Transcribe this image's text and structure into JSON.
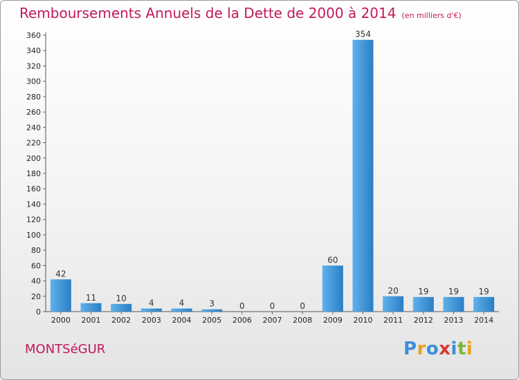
{
  "title": "Remboursements Annuels de la Dette de 2000 à 2014",
  "subtitle": "(en milliers d'€)",
  "commune": "MONTSéGUR",
  "logo": {
    "text": "Proxiti",
    "letters": [
      {
        "ch": "P",
        "color": "#3a8fd8"
      },
      {
        "ch": "r",
        "color": "#e8a21e"
      },
      {
        "ch": "o",
        "color": "#3a8fd8"
      },
      {
        "ch": "x",
        "color": "#d63a2f"
      },
      {
        "ch": "i",
        "color": "#3a8fd8"
      },
      {
        "ch": "t",
        "color": "#7db535"
      },
      {
        "ch": "i",
        "color": "#e8a21e"
      }
    ]
  },
  "colors": {
    "accent": "#c2185b",
    "bar_light": "#5fb1ec",
    "bar_dark": "#2a7fc4"
  },
  "chart_data": {
    "type": "bar",
    "categories": [
      "2000",
      "2001",
      "2002",
      "2003",
      "2004",
      "2005",
      "2006",
      "2007",
      "2008",
      "2009",
      "2010",
      "2011",
      "2012",
      "2013",
      "2014"
    ],
    "values": [
      42,
      11,
      10,
      4,
      4,
      3,
      0,
      0,
      0,
      60,
      354,
      20,
      19,
      19,
      19
    ],
    "data_labels": [
      "42",
      "11",
      "10",
      "4",
      "4",
      "3",
      "0",
      "0",
      "0",
      "60",
      "354",
      "20",
      "19",
      "19",
      "19"
    ],
    "ylim": [
      0,
      360
    ],
    "yticks": [
      0,
      20,
      40,
      60,
      80,
      100,
      120,
      140,
      160,
      180,
      200,
      220,
      240,
      260,
      280,
      300,
      320,
      340,
      360
    ],
    "grid": false
  }
}
